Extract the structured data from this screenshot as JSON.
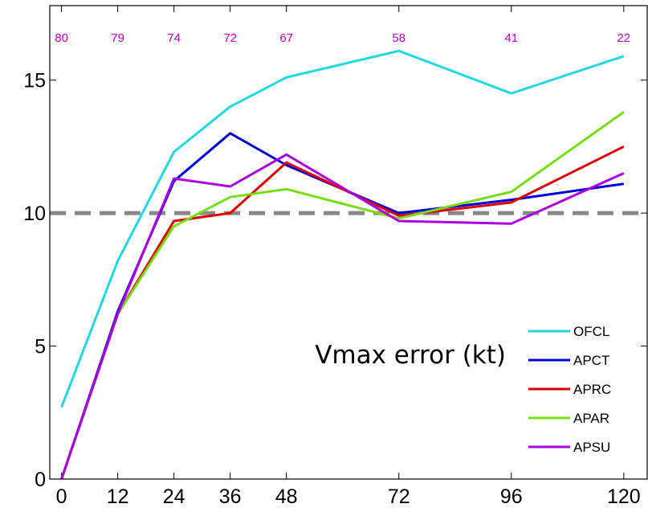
{
  "chart_data": {
    "type": "line",
    "title": "",
    "xlabel": "",
    "ylabel": "",
    "annotation": "Vmax error (kt)",
    "x": [
      0,
      12,
      24,
      36,
      48,
      72,
      96,
      120
    ],
    "xticks": [
      "0",
      "12",
      "24",
      "36",
      "48",
      "72",
      "96",
      "120"
    ],
    "yticks": [
      "0",
      "5",
      "10",
      "15"
    ],
    "ylim": [
      0,
      17.8
    ],
    "xlim": [
      -2.5,
      125
    ],
    "grid": false,
    "legend_position": "bottom-right",
    "case_counts": [
      "80",
      "79",
      "74",
      "72",
      "67",
      "58",
      "41",
      "22"
    ],
    "reference_line": {
      "y": 10,
      "style": "dashed",
      "color": "#888888"
    },
    "series": [
      {
        "name": "OFCL",
        "color": "#22d8e0",
        "values": [
          2.7,
          8.2,
          12.3,
          14.0,
          15.1,
          16.1,
          14.5,
          15.9
        ]
      },
      {
        "name": "APCT",
        "color": "#0000d8",
        "values": [
          0.0,
          6.3,
          11.2,
          13.0,
          11.8,
          10.0,
          10.5,
          11.1
        ]
      },
      {
        "name": "APRC",
        "color": "#dd0000",
        "values": [
          0.0,
          6.2,
          9.7,
          10.0,
          11.9,
          9.9,
          10.4,
          12.5
        ]
      },
      {
        "name": "APAR",
        "color": "#77dd11",
        "values": [
          0.0,
          6.2,
          9.5,
          10.6,
          10.9,
          9.8,
          10.8,
          13.8
        ]
      },
      {
        "name": "APSU",
        "color": "#aa00dd",
        "values": [
          0.0,
          6.2,
          11.3,
          11.0,
          12.2,
          9.7,
          9.6,
          11.5
        ]
      }
    ]
  }
}
